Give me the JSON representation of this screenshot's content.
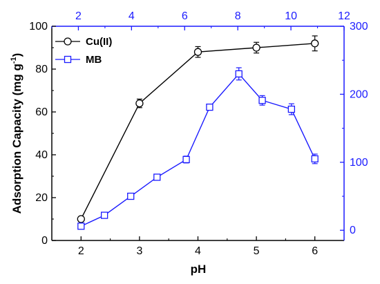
{
  "chart_data": {
    "type": "line",
    "xlabel": "pH",
    "ylabel": "Adsorption Capacity (mg g",
    "ylabel_superscript": "-1",
    "ylabel_close": ")",
    "x_bottom": {
      "range": [
        1.5,
        6.5
      ],
      "ticks": [
        "2",
        "3",
        "4",
        "5",
        "6"
      ]
    },
    "x_top": {
      "range": [
        1,
        12
      ],
      "ticks": [
        "2",
        "4",
        "6",
        "8",
        "10",
        "12"
      ]
    },
    "y_left": {
      "range": [
        0,
        100
      ],
      "ticks": [
        "0",
        "20",
        "40",
        "60",
        "80",
        "100"
      ]
    },
    "y_right": {
      "range": [
        -15,
        300
      ],
      "ticks": [
        "0",
        "100",
        "200",
        "300"
      ]
    },
    "grid": false,
    "legend_position": "top-left",
    "series": [
      {
        "name": "Cu(II)",
        "x_axis": "bottom",
        "y_axis": "left",
        "color": "#000000",
        "marker": "circle",
        "x": [
          2,
          3,
          4,
          5,
          6
        ],
        "y": [
          10,
          64,
          88,
          90,
          92
        ],
        "error": [
          1.0,
          2.0,
          2.5,
          2.5,
          3.5
        ]
      },
      {
        "name": "MB",
        "x_axis": "bottom",
        "y_axis": "right",
        "color": "#1a1aff",
        "marker": "square",
        "x": [
          2.0,
          2.4,
          2.85,
          3.3,
          3.8,
          4.2,
          4.7,
          5.1,
          5.6,
          6.0
        ],
        "y": [
          6,
          22,
          50,
          78,
          104,
          181,
          230,
          191,
          178,
          105
        ],
        "error": [
          3,
          3,
          3,
          3,
          5,
          4,
          9,
          7,
          8,
          7
        ]
      }
    ]
  }
}
